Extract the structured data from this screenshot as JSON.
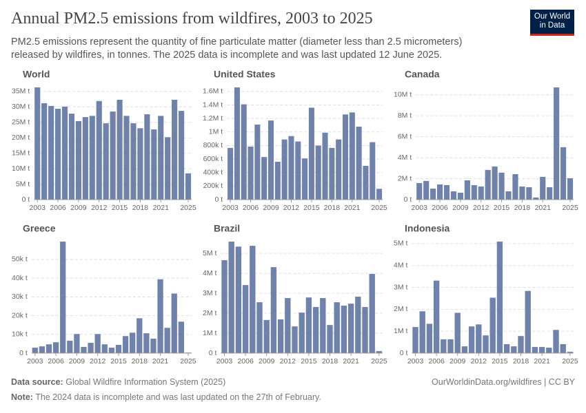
{
  "title": "Annual PM2.5 emissions from wildfires, 2003 to 2025",
  "subtitle": "PM2.5 emissions represent the quantity of fine particulate matter (diameter less than 2.5 micrometers) released by wildfires, in tonnes. The 2025 data is incomplete and was last updated 12 June 2025.",
  "logo": [
    "Our World",
    "in Data"
  ],
  "source_label": "Data source:",
  "source": "Global Wildfire Information System (2025)",
  "url": "OurWorldinData.org/wildfires | CC BY",
  "note_label": "Note:",
  "note": "The 2024 data is incomplete and was last updated on the 27th of February.",
  "chart_data": [
    {
      "type": "bar",
      "title": "World",
      "color": "#6f82ab",
      "categories": [
        "2003",
        null,
        null,
        "2006",
        null,
        null,
        "2009",
        null,
        null,
        "2012",
        null,
        null,
        "2015",
        null,
        null,
        "2018",
        null,
        null,
        "2021",
        null,
        null,
        null,
        "2025"
      ],
      "values": [
        36300000,
        31200000,
        30300000,
        29400000,
        30100000,
        27800000,
        25400000,
        26700000,
        27100000,
        31900000,
        24700000,
        28500000,
        32300000,
        27100000,
        24700000,
        23100000,
        27600000,
        22700000,
        27100000,
        20200000,
        32300000,
        28700000,
        8500000
      ],
      "ylim": [
        0,
        36300000
      ],
      "yticks": [
        {
          "value": 0,
          "label": "0 t"
        },
        {
          "value": 5000000,
          "label": "5M t"
        },
        {
          "value": 10000000,
          "label": "10M t"
        },
        {
          "value": 15000000,
          "label": "15M t"
        },
        {
          "value": 20000000,
          "label": "20M t"
        },
        {
          "value": 25000000,
          "label": "25M t"
        },
        {
          "value": 30000000,
          "label": "30M t"
        },
        {
          "value": 35000000,
          "label": "35M t"
        }
      ],
      "grid": true
    },
    {
      "type": "bar",
      "title": "United States",
      "color": "#6f82ab",
      "categories": [
        "2003",
        null,
        null,
        "2006",
        null,
        null,
        "2009",
        null,
        null,
        "2012",
        null,
        null,
        "2015",
        null,
        null,
        "2018",
        null,
        null,
        "2021",
        null,
        null,
        null,
        "2025"
      ],
      "values": [
        765000,
        1660000,
        1410000,
        785000,
        1110000,
        630000,
        1170000,
        560000,
        890000,
        940000,
        860000,
        610000,
        1360000,
        800000,
        990000,
        765000,
        890000,
        1260000,
        1290000,
        1080000,
        500000,
        850000,
        160000
      ],
      "ylim": [
        0,
        1660000
      ],
      "yticks": [
        {
          "value": 0,
          "label": "0 t"
        },
        {
          "value": 200000,
          "label": "200k t"
        },
        {
          "value": 400000,
          "label": "400k t"
        },
        {
          "value": 600000,
          "label": "600k t"
        },
        {
          "value": 800000,
          "label": "800k t"
        },
        {
          "value": 1000000,
          "label": "1M t"
        },
        {
          "value": 1200000,
          "label": "1.2M t"
        },
        {
          "value": 1400000,
          "label": "1.4M t"
        },
        {
          "value": 1600000,
          "label": "1.6M t"
        }
      ],
      "grid": true
    },
    {
      "type": "bar",
      "title": "Canada",
      "color": "#6f82ab",
      "categories": [
        "2003",
        null,
        null,
        "2006",
        null,
        null,
        "2009",
        null,
        null,
        "2012",
        null,
        null,
        "2015",
        null,
        null,
        "2018",
        null,
        null,
        "2021",
        null,
        null,
        null,
        "2025"
      ],
      "values": [
        1580000,
        1780000,
        1050000,
        1450000,
        1380000,
        790000,
        660000,
        1840000,
        1380000,
        1250000,
        2830000,
        3160000,
        2570000,
        790000,
        2430000,
        1250000,
        1180000,
        200000,
        2170000,
        1180000,
        10700000,
        5000000,
        2040000
      ],
      "ylim": [
        0,
        10700000
      ],
      "yticks": [
        {
          "value": 0,
          "label": "0 t"
        },
        {
          "value": 2000000,
          "label": "2M t"
        },
        {
          "value": 4000000,
          "label": "4M t"
        },
        {
          "value": 6000000,
          "label": "6M t"
        },
        {
          "value": 8000000,
          "label": "8M t"
        },
        {
          "value": 10000000,
          "label": "10M t"
        }
      ],
      "grid": true
    },
    {
      "type": "bar",
      "title": "Greece",
      "color": "#6f82ab",
      "categories": [
        "2003",
        null,
        null,
        "2006",
        null,
        null,
        "2009",
        null,
        null,
        "2012",
        null,
        null,
        "2015",
        null,
        null,
        "2018",
        null,
        null,
        "2021",
        null,
        null,
        null,
        "2025"
      ],
      "values": [
        2900,
        3600,
        4700,
        5800,
        59500,
        6600,
        10200,
        3300,
        5500,
        10200,
        4700,
        2900,
        4400,
        9100,
        10900,
        18600,
        10600,
        7700,
        39400,
        13500,
        31800,
        16800,
        300
      ],
      "ylim": [
        0,
        59500
      ],
      "yticks": [
        {
          "value": 0,
          "label": "0 t"
        },
        {
          "value": 10000,
          "label": "10k t"
        },
        {
          "value": 20000,
          "label": "20k t"
        },
        {
          "value": 30000,
          "label": "30k t"
        },
        {
          "value": 40000,
          "label": "40k t"
        },
        {
          "value": 50000,
          "label": "50k t"
        }
      ],
      "grid": true
    },
    {
      "type": "bar",
      "title": "Brazil",
      "color": "#6f82ab",
      "categories": [
        "2003",
        null,
        null,
        "2006",
        null,
        null,
        "2009",
        null,
        null,
        "2012",
        null,
        null,
        "2015",
        null,
        null,
        "2018",
        null,
        null,
        "2021",
        null,
        null,
        null,
        "2025"
      ],
      "values": [
        4660000,
        5590000,
        5340000,
        3410000,
        5380000,
        2550000,
        1660000,
        4310000,
        1690000,
        2760000,
        1340000,
        2030000,
        2790000,
        2310000,
        2760000,
        1410000,
        2550000,
        2380000,
        2480000,
        2830000,
        2310000,
        3970000,
        100000
      ],
      "ylim": [
        0,
        5590000
      ],
      "yticks": [
        {
          "value": 0,
          "label": "0 t"
        },
        {
          "value": 1000000,
          "label": "1M t"
        },
        {
          "value": 2000000,
          "label": "2M t"
        },
        {
          "value": 3000000,
          "label": "3M t"
        },
        {
          "value": 4000000,
          "label": "4M t"
        },
        {
          "value": 5000000,
          "label": "5M t"
        }
      ],
      "grid": true
    },
    {
      "type": "bar",
      "title": "Indonesia",
      "color": "#6f82ab",
      "categories": [
        "2003",
        null,
        null,
        "2006",
        null,
        null,
        "2009",
        null,
        null,
        "2012",
        null,
        null,
        "2015",
        null,
        null,
        "2018",
        null,
        null,
        "2021",
        null,
        null,
        null,
        "2025"
      ],
      "values": [
        1190000,
        1910000,
        1340000,
        3310000,
        630000,
        630000,
        1840000,
        310000,
        1220000,
        1310000,
        810000,
        2530000,
        5090000,
        410000,
        310000,
        780000,
        2840000,
        280000,
        280000,
        250000,
        1060000,
        410000,
        60000
      ],
      "ylim": [
        0,
        5090000
      ],
      "yticks": [
        {
          "value": 0,
          "label": "0 t"
        },
        {
          "value": 1000000,
          "label": "1M t"
        },
        {
          "value": 2000000,
          "label": "2M t"
        },
        {
          "value": 3000000,
          "label": "3M t"
        },
        {
          "value": 4000000,
          "label": "4M t"
        },
        {
          "value": 5000000,
          "label": "5M t"
        }
      ],
      "grid": true
    }
  ]
}
